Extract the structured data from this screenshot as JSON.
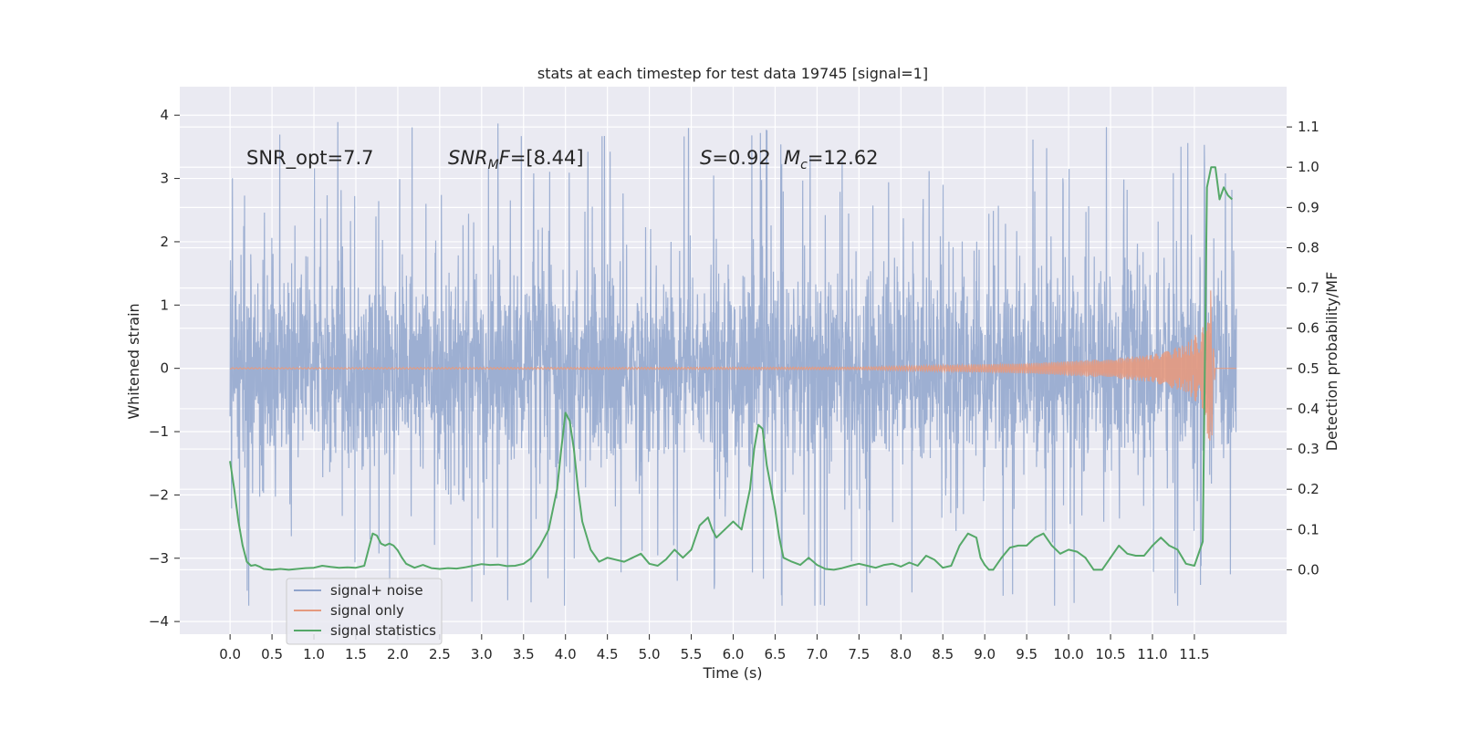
{
  "chart_data": {
    "type": "line",
    "title": "stats at each timestep for test data 19745 [signal=1]",
    "xlabel": "Time (s)",
    "ylabel_left": "Whitened strain",
    "ylabel_right": "Detection probability/MF",
    "xlim": [
      -0.6,
      12.6
    ],
    "ylim_left": [
      -4.2,
      4.45
    ],
    "ylim_right": [
      -0.16,
      1.2
    ],
    "x_ticks": [
      "0.0",
      "0.5",
      "1.0",
      "1.5",
      "2.0",
      "2.5",
      "3.0",
      "3.5",
      "4.0",
      "4.5",
      "5.0",
      "5.5",
      "6.0",
      "6.5",
      "7.0",
      "7.5",
      "8.0",
      "8.5",
      "9.0",
      "9.5",
      "10.0",
      "10.5",
      "11.0",
      "11.5"
    ],
    "y_ticks_left": [
      "−4",
      "−3",
      "−2",
      "−1",
      "0",
      "1",
      "2",
      "3",
      "4"
    ],
    "y_ticks_right": [
      "0.0",
      "0.1",
      "0.2",
      "0.3",
      "0.4",
      "0.5",
      "0.6",
      "0.7",
      "0.8",
      "0.9",
      "1.0",
      "1.1"
    ],
    "grid": true,
    "legend_position": "lower-left",
    "annotations": {
      "snr_opt": "SNR_opt=7.7",
      "snr_mf_a": "SNR",
      "snr_mf_sub": "M",
      "snr_mf_b": "F=[8.44]",
      "s_a": "S",
      "s_b": "=0.92",
      "mc_a": "M",
      "mc_sub": "c",
      "mc_b": "=12.62"
    },
    "series": [
      {
        "name": "signal+ noise",
        "axis": "left",
        "color": "#8fa4cc",
        "x_range": [
          0.0,
          12.0
        ],
        "typical_range": [
          -1.4,
          1.4
        ],
        "peak_range": [
          -3.75,
          4.1
        ]
      },
      {
        "name": "signal only",
        "axis": "left",
        "color": "#e59a7f",
        "x_range": [
          0.0,
          12.0
        ],
        "envelope": [
          [
            0.0,
            0.01
          ],
          [
            7.5,
            0.02
          ],
          [
            8.5,
            0.05
          ],
          [
            9.5,
            0.08
          ],
          [
            10.5,
            0.15
          ],
          [
            11.0,
            0.22
          ],
          [
            11.4,
            0.38
          ],
          [
            11.6,
            0.65
          ],
          [
            11.7,
            1.35
          ],
          [
            11.75,
            0.0
          ],
          [
            12.0,
            0.0
          ]
        ]
      },
      {
        "name": "signal statistics",
        "axis": "right",
        "color": "#55a868",
        "x": [
          0.0,
          0.05,
          0.1,
          0.15,
          0.2,
          0.25,
          0.3,
          0.35,
          0.4,
          0.5,
          0.6,
          0.7,
          0.8,
          0.9,
          1.0,
          1.1,
          1.2,
          1.3,
          1.4,
          1.5,
          1.6,
          1.7,
          1.75,
          1.8,
          1.85,
          1.9,
          1.95,
          2.0,
          2.05,
          2.1,
          2.2,
          2.3,
          2.4,
          2.5,
          2.6,
          2.7,
          2.8,
          2.9,
          3.0,
          3.1,
          3.2,
          3.3,
          3.4,
          3.5,
          3.6,
          3.7,
          3.8,
          3.9,
          3.95,
          4.0,
          4.05,
          4.1,
          4.15,
          4.2,
          4.3,
          4.4,
          4.5,
          4.6,
          4.7,
          4.8,
          4.9,
          5.0,
          5.1,
          5.2,
          5.3,
          5.4,
          5.5,
          5.6,
          5.7,
          5.75,
          5.8,
          5.9,
          6.0,
          6.1,
          6.2,
          6.25,
          6.3,
          6.35,
          6.4,
          6.5,
          6.55,
          6.6,
          6.7,
          6.8,
          6.9,
          7.0,
          7.1,
          7.2,
          7.3,
          7.4,
          7.5,
          7.6,
          7.7,
          7.8,
          7.9,
          8.0,
          8.1,
          8.2,
          8.3,
          8.4,
          8.5,
          8.6,
          8.7,
          8.8,
          8.9,
          8.95,
          9.0,
          9.05,
          9.1,
          9.2,
          9.3,
          9.4,
          9.5,
          9.6,
          9.7,
          9.8,
          9.9,
          10.0,
          10.1,
          10.2,
          10.3,
          10.4,
          10.5,
          10.6,
          10.7,
          10.8,
          10.9,
          11.0,
          11.1,
          11.2,
          11.3,
          11.4,
          11.5,
          11.6,
          11.65,
          11.7,
          11.75,
          11.8,
          11.85,
          11.9,
          11.95
        ],
        "y": [
          0.27,
          0.2,
          0.12,
          0.06,
          0.02,
          0.01,
          0.012,
          0.008,
          0.002,
          0.0,
          0.002,
          0.0,
          0.002,
          0.004,
          0.005,
          0.01,
          0.007,
          0.005,
          0.006,
          0.005,
          0.01,
          0.09,
          0.085,
          0.065,
          0.06,
          0.065,
          0.06,
          0.048,
          0.03,
          0.015,
          0.005,
          0.012,
          0.004,
          0.002,
          0.004,
          0.003,
          0.006,
          0.01,
          0.014,
          0.012,
          0.013,
          0.009,
          0.01,
          0.015,
          0.03,
          0.06,
          0.1,
          0.2,
          0.3,
          0.39,
          0.37,
          0.3,
          0.2,
          0.12,
          0.05,
          0.02,
          0.03,
          0.025,
          0.02,
          0.03,
          0.04,
          0.015,
          0.01,
          0.026,
          0.05,
          0.03,
          0.05,
          0.11,
          0.13,
          0.1,
          0.08,
          0.1,
          0.12,
          0.1,
          0.2,
          0.3,
          0.36,
          0.35,
          0.26,
          0.15,
          0.08,
          0.03,
          0.02,
          0.012,
          0.03,
          0.012,
          0.002,
          0.0,
          0.004,
          0.01,
          0.015,
          0.01,
          0.005,
          0.012,
          0.015,
          0.008,
          0.018,
          0.01,
          0.035,
          0.025,
          0.005,
          0.01,
          0.06,
          0.09,
          0.08,
          0.03,
          0.012,
          0.0,
          0.0,
          0.03,
          0.055,
          0.06,
          0.06,
          0.08,
          0.09,
          0.06,
          0.04,
          0.05,
          0.045,
          0.03,
          0.0,
          0.0,
          0.03,
          0.06,
          0.04,
          0.035,
          0.035,
          0.06,
          0.08,
          0.06,
          0.05,
          0.015,
          0.01,
          0.07,
          0.95,
          1.0,
          1.0,
          0.92,
          0.95,
          0.93,
          0.92
        ]
      }
    ]
  }
}
